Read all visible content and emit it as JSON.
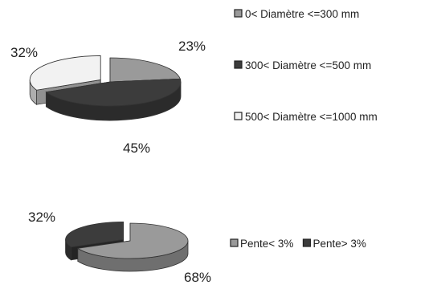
{
  "chart_data": [
    {
      "type": "pie",
      "style": "3d-exploded",
      "categories": [
        "0< Diamètre <=300 mm",
        "300< Diamètre <=500 mm",
        "500< Diamètre <=1000 mm"
      ],
      "values": [
        23,
        45,
        32
      ],
      "labels": [
        "23%",
        "45%",
        "32%"
      ],
      "colors": [
        "#9a9a9a",
        "#3c3c3c",
        "#f2f2f2"
      ],
      "legend_position": "right"
    },
    {
      "type": "pie",
      "style": "3d-exploded",
      "categories": [
        "Pente< 3%",
        "Pente> 3%"
      ],
      "values": [
        68,
        32
      ],
      "labels": [
        "68%",
        "32%"
      ],
      "colors": [
        "#9a9a9a",
        "#3c3c3c"
      ],
      "legend_position": "right"
    }
  ]
}
